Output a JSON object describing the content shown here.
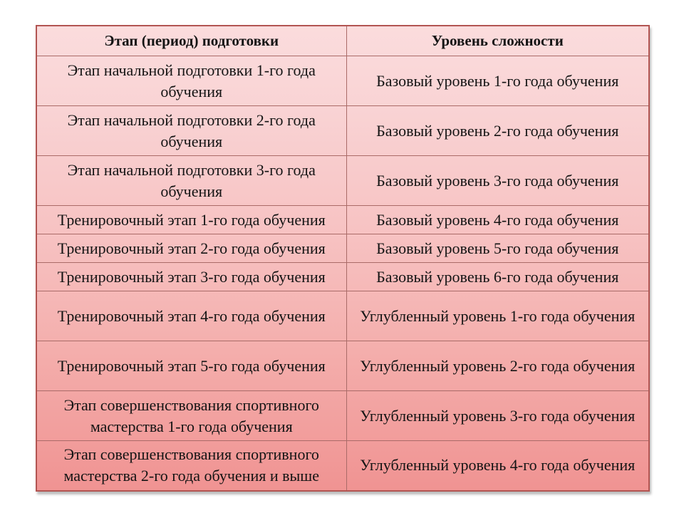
{
  "table": {
    "headers": [
      "Этап (период) подготовки",
      "Уровень сложности"
    ],
    "rows": [
      {
        "stage": "Этап начальной подготовки 1-го года обучения",
        "level": "Базовый уровень 1-го года обучения"
      },
      {
        "stage": "Этап начальной подготовки 2-го года обучения",
        "level": "Базовый уровень 2-го года обучения"
      },
      {
        "stage": "Этап начальной подготовки 3-го года обучения",
        "level": "Базовый уровень 3-го года обучения"
      },
      {
        "stage": "Тренировочный этап 1-го года обучения",
        "level": "Базовый уровень 4-го года обучения"
      },
      {
        "stage": "Тренировочный этап 2-го года обучения",
        "level": "Базовый уровень 5-го года обучения"
      },
      {
        "stage": "Тренировочный этап 3-го года обучения",
        "level": "Базовый уровень 6-го года обучения"
      },
      {
        "stage": "Тренировочный этап 4-го года обучения",
        "level": "Углубленный уровень 1-го года обучения"
      },
      {
        "stage": "Тренировочный этап 5-го года обучения",
        "level": "Углубленный уровень 2-го года обучения"
      },
      {
        "stage": "Этап совершенствования спортивного мастерства 1-го года обучения",
        "level": "Углубленный уровень 3-го года обучения"
      },
      {
        "stage": "Этап совершенствования спортивного мастерства 2-го года обучения и выше",
        "level": "Углубленный уровень 4-го года обучения"
      }
    ],
    "colors": {
      "gradient_top": "#fbdcdd",
      "gradient_bottom": "#f09392",
      "outer_border": "#b25552",
      "inner_border": "#aa6b68",
      "text": "#141414",
      "page_background": "#ffffff"
    }
  }
}
